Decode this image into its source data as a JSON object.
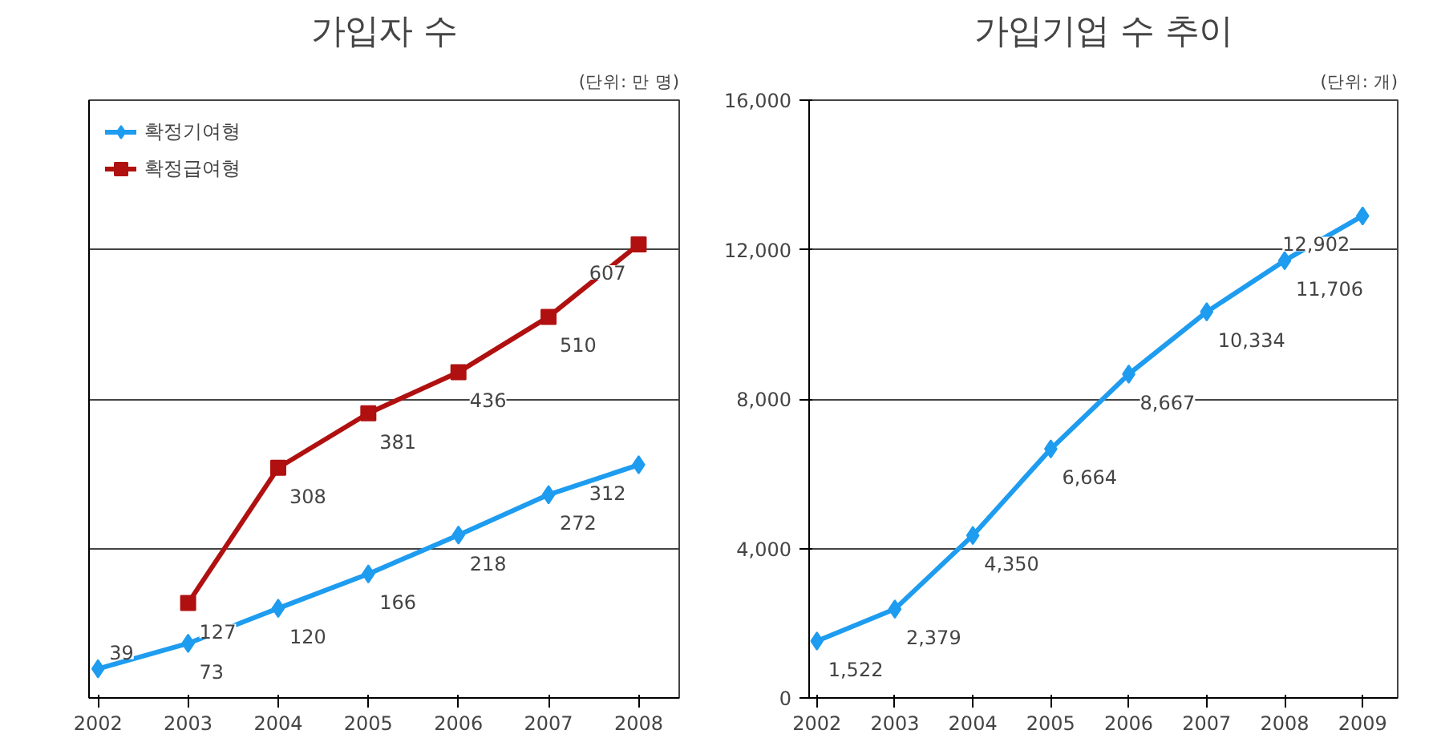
{
  "chart_data": [
    {
      "type": "line",
      "title": "가입자 수",
      "annotations": [
        "(단위: 만 명)"
      ],
      "categories": [
        "2002",
        "2003",
        "2004",
        "2005",
        "2006",
        "2007",
        "2008"
      ],
      "series": [
        {
          "name": "확정기여형",
          "color": "#1e9cf0",
          "marker": "diamond",
          "values": [
            39,
            73,
            120,
            166,
            218,
            272,
            312
          ]
        },
        {
          "name": "확정급여형",
          "color": "#b01010",
          "marker": "square",
          "values": [
            null,
            127,
            308,
            381,
            436,
            510,
            607
          ]
        }
      ],
      "ylim": [
        0,
        800
      ],
      "yticks": [
        {
          "value": 0,
          "label": null
        },
        {
          "value": 200,
          "label": null
        },
        {
          "value": 400,
          "label": null
        },
        {
          "value": 600,
          "label": null
        },
        {
          "value": 800,
          "label": null
        }
      ],
      "tick_labels": "x",
      "grid": "y",
      "legend": "top left",
      "data_labels": true
    },
    {
      "type": "line",
      "title": "가입기업 수 추이",
      "annotations": [
        "(단위: 개)"
      ],
      "categories": [
        "2002",
        "2003",
        "2004",
        "2005",
        "2006",
        "2007",
        "2008",
        "2009"
      ],
      "series": [
        {
          "color": "#1e9cf0",
          "marker": "diamond",
          "values": [
            1522,
            2379,
            4350,
            6664,
            8667,
            10334,
            11706,
            12902
          ],
          "value_labels": [
            "1,522",
            "2,379",
            "4,350",
            "6,664",
            "8,667",
            "10,334",
            "11,706",
            "12,902"
          ]
        }
      ],
      "ylim": [
        0,
        16000
      ],
      "yticks": [
        {
          "value": 0,
          "label": "0"
        },
        {
          "value": 4000,
          "label": "4,000"
        },
        {
          "value": 8000,
          "label": "8,000"
        },
        {
          "value": 12000,
          "label": "12,000"
        },
        {
          "value": 16000,
          "label": "16,000"
        }
      ],
      "grid": "y"
    }
  ]
}
